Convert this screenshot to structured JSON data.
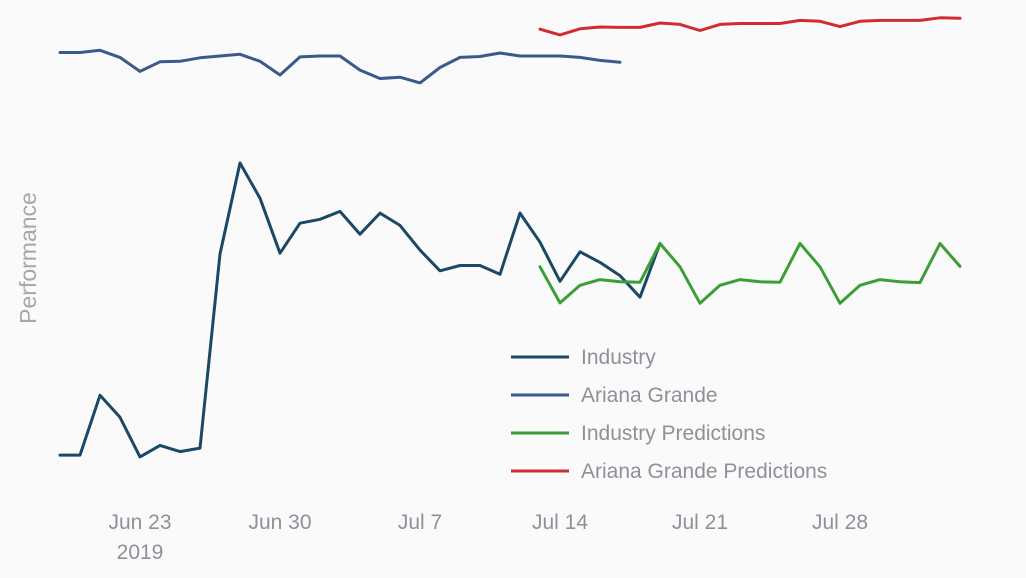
{
  "chart_data": {
    "type": "line",
    "ylabel": "Performance",
    "xlabel": "",
    "grid": false,
    "legend_placement": "bottom-center",
    "x_ticks": [
      {
        "date": "2019-06-23",
        "label": "Jun 23",
        "sublabel": "2019"
      },
      {
        "date": "2019-06-30",
        "label": "Jun 30",
        "sublabel": ""
      },
      {
        "date": "2019-07-07",
        "label": "Jul 7",
        "sublabel": ""
      },
      {
        "date": "2019-07-14",
        "label": "Jul 14",
        "sublabel": ""
      },
      {
        "date": "2019-07-21",
        "label": "Jul 21",
        "sublabel": ""
      },
      {
        "date": "2019-07-28",
        "label": "Jul 28",
        "sublabel": ""
      }
    ],
    "xlim": [
      "2019-06-19",
      "2019-08-03"
    ],
    "ylim": [
      0,
      100
    ],
    "series": [
      {
        "name": "Industry",
        "color": "#1b4965",
        "start": "2019-06-19",
        "values": [
          5.2,
          5.2,
          18.8,
          13.8,
          4.8,
          7.4,
          6.0,
          6.8,
          50.9,
          71.6,
          63.6,
          51.1,
          57.9,
          58.8,
          60.6,
          55.4,
          60.2,
          57.4,
          51.8,
          47.1,
          48.3,
          48.3,
          46.3,
          60.2,
          53.6,
          44.7,
          51.4,
          49.0,
          46.0,
          41.1,
          53.3
        ]
      },
      {
        "name": "Ariana Grande",
        "color": "#3b5a8c",
        "start": "2019-06-19",
        "values": [
          96.7,
          96.7,
          97.2,
          95.6,
          92.4,
          94.6,
          94.7,
          95.5,
          95.9,
          96.3,
          94.7,
          91.6,
          95.7,
          95.9,
          95.9,
          92.7,
          90.8,
          91.1,
          89.8,
          93.3,
          95.6,
          95.8,
          96.6,
          95.9,
          95.9,
          95.9,
          95.6,
          94.9,
          94.5
        ]
      },
      {
        "name": "Industry Predictions",
        "color": "#3d9e36",
        "start": "2019-07-13",
        "values": [
          48.0,
          39.8,
          43.8,
          45.1,
          44.6,
          44.5,
          53.3,
          48.0,
          39.7,
          43.8,
          45.1,
          44.6,
          44.5,
          53.3,
          48.0,
          39.7,
          43.8,
          45.1,
          44.6,
          44.4,
          53.3,
          48.1
        ]
      },
      {
        "name": "Ariana Grande Predictions",
        "color": "#d12c31",
        "start": "2019-07-13",
        "values": [
          102.0,
          100.7,
          102.1,
          102.5,
          102.4,
          102.4,
          103.4,
          103.1,
          101.7,
          103.1,
          103.3,
          103.3,
          103.3,
          104.0,
          103.8,
          102.6,
          103.8,
          104.0,
          104.0,
          104.0,
          104.6,
          104.5
        ]
      }
    ]
  }
}
